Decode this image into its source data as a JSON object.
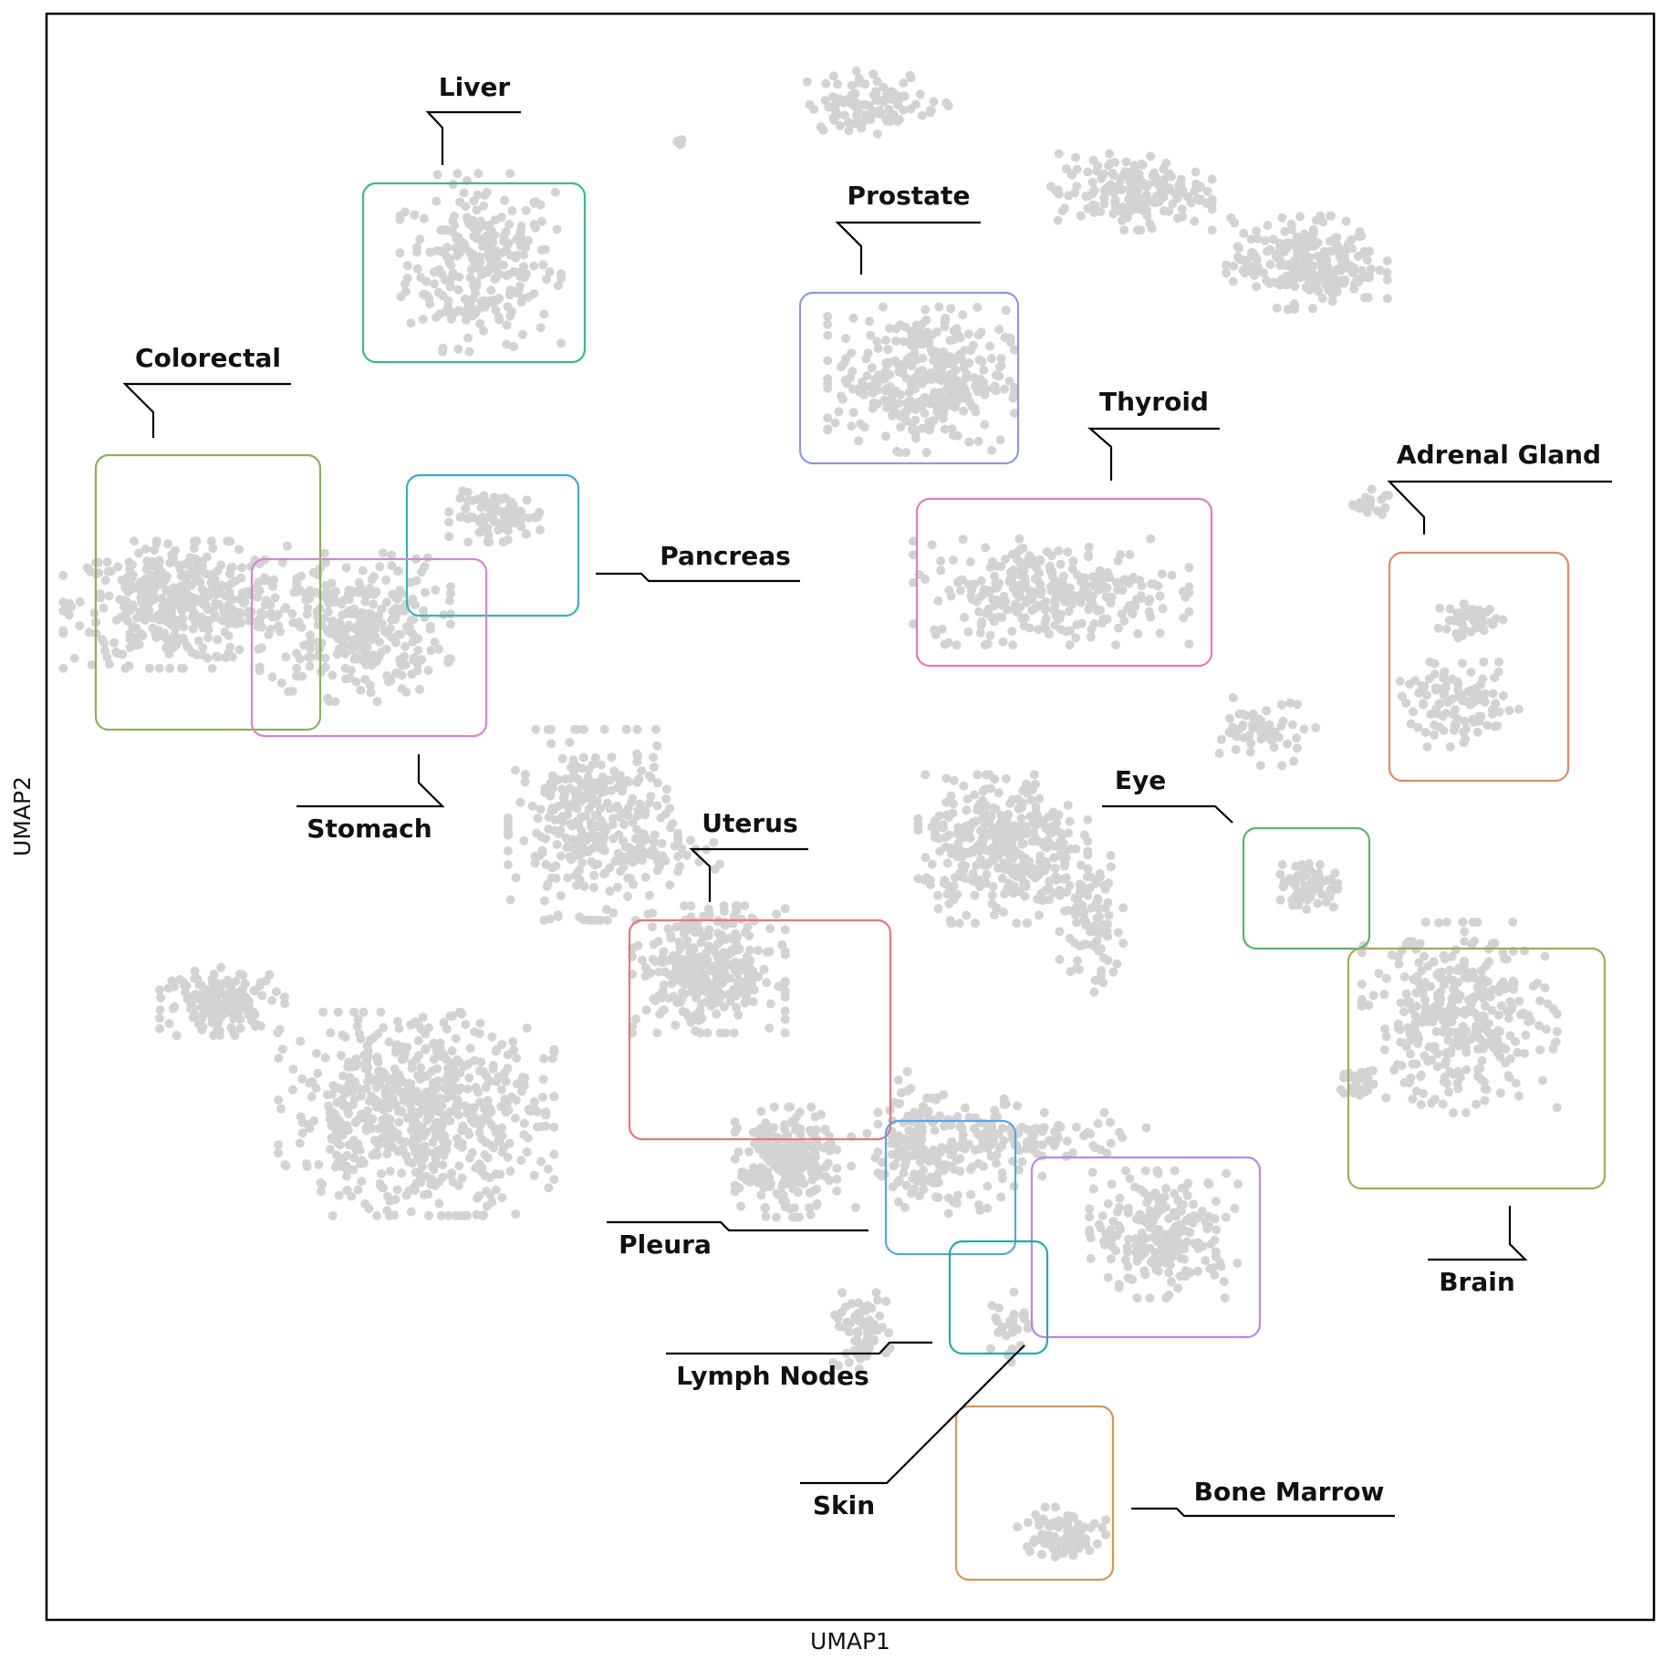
{
  "chart_data": {
    "type": "scatter",
    "title": "",
    "xlabel": "UMAP1",
    "ylabel": "UMAP2",
    "xlim": [
      0,
      100
    ],
    "ylim": [
      0,
      100
    ],
    "grid": false,
    "legend": "none",
    "point_color": "#d3d3d3",
    "note": "Points are UMAP embedding; rendered as dense clusters (approximate cluster centers and spreads in data units).",
    "clusters": [
      {
        "cx": 27,
        "cy": 84.5,
        "sx": 3.8,
        "sy": 4.2,
        "n": 260
      },
      {
        "cx": 8.3,
        "cy": 63.2,
        "sx": 5.5,
        "sy": 3.0,
        "n": 420
      },
      {
        "cx": 19.2,
        "cy": 61.8,
        "sx": 4.5,
        "sy": 3.5,
        "n": 300
      },
      {
        "cx": 28.2,
        "cy": 68.7,
        "sx": 2.4,
        "sy": 1.2,
        "n": 90
      },
      {
        "cx": 34.0,
        "cy": 49.5,
        "sx": 4.0,
        "sy": 4.5,
        "n": 320
      },
      {
        "cx": 54.4,
        "cy": 77.3,
        "sx": 4.4,
        "sy": 3.5,
        "n": 330
      },
      {
        "cx": 62.5,
        "cy": 64.0,
        "sx": 6.5,
        "sy": 2.5,
        "n": 300
      },
      {
        "cx": 67.5,
        "cy": 88.9,
        "sx": 3.8,
        "sy": 1.8,
        "n": 180
      },
      {
        "cx": 78.4,
        "cy": 84.5,
        "sx": 3.8,
        "sy": 2.2,
        "n": 240
      },
      {
        "cx": 51.5,
        "cy": 94.5,
        "sx": 3.5,
        "sy": 1.5,
        "n": 100
      },
      {
        "cx": 59.5,
        "cy": 48.0,
        "sx": 4.0,
        "sy": 3.5,
        "n": 360
      },
      {
        "cx": 65.0,
        "cy": 43.5,
        "sx": 1.5,
        "sy": 3.5,
        "n": 90
      },
      {
        "cx": 41.2,
        "cy": 40.5,
        "sx": 3.6,
        "sy": 3.0,
        "n": 340
      },
      {
        "cx": 46.0,
        "cy": 28.5,
        "sx": 2.4,
        "sy": 2.6,
        "n": 240
      },
      {
        "cx": 23.0,
        "cy": 31.5,
        "sx": 6.5,
        "sy": 4.8,
        "n": 650
      },
      {
        "cx": 11.0,
        "cy": 38.5,
        "sx": 3.0,
        "sy": 1.6,
        "n": 160
      },
      {
        "cx": 69.5,
        "cy": 24.0,
        "sx": 3.5,
        "sy": 3.0,
        "n": 230
      },
      {
        "cx": 56.0,
        "cy": 29.0,
        "sx": 4.5,
        "sy": 2.8,
        "n": 140
      },
      {
        "cx": 87.9,
        "cy": 37.5,
        "sx": 4.6,
        "sy": 4.5,
        "n": 350
      },
      {
        "cx": 87.9,
        "cy": 57.0,
        "sx": 2.8,
        "sy": 2.0,
        "n": 110
      },
      {
        "cx": 88.7,
        "cy": 62.2,
        "sx": 1.8,
        "sy": 0.8,
        "n": 50
      },
      {
        "cx": 78.6,
        "cy": 45.5,
        "sx": 1.4,
        "sy": 1.2,
        "n": 40
      },
      {
        "cx": 50.5,
        "cy": 18.0,
        "sx": 1.5,
        "sy": 1.8,
        "n": 70
      },
      {
        "cx": 54.1,
        "cy": 30.5,
        "sx": 1.8,
        "sy": 3.5,
        "n": 60
      },
      {
        "cx": 59.8,
        "cy": 18.5,
        "sx": 1.0,
        "sy": 2.0,
        "n": 30
      },
      {
        "cx": 63.0,
        "cy": 5.3,
        "sx": 2.2,
        "sy": 1.3,
        "n": 90
      },
      {
        "cx": 81.5,
        "cy": 33.5,
        "sx": 0.9,
        "sy": 0.8,
        "n": 30
      },
      {
        "cx": 76.0,
        "cy": 55.3,
        "sx": 2.3,
        "sy": 1.6,
        "n": 60
      },
      {
        "cx": 78.6,
        "cy": 45.7,
        "sx": 1.3,
        "sy": 1.0,
        "n": 30
      },
      {
        "cx": 82.3,
        "cy": 69.6,
        "sx": 0.9,
        "sy": 0.6,
        "n": 25
      },
      {
        "cx": 37.5,
        "cy": 47.6,
        "sx": 3.5,
        "sy": 0.8,
        "n": 40
      },
      {
        "cx": 39.5,
        "cy": 92.1,
        "sx": 0.4,
        "sy": 0.3,
        "n": 6
      },
      {
        "cx": 60.5,
        "cy": 30.0,
        "sx": 6.0,
        "sy": 1.2,
        "n": 80
      }
    ],
    "annotations": [
      {
        "label": "Liver",
        "color": "#3cb98c"
      },
      {
        "label": "Colorectal",
        "color": "#8cb05a"
      },
      {
        "label": "Pancreas",
        "color": "#3aaec6"
      },
      {
        "label": "Stomach",
        "color": "#d785d0"
      },
      {
        "label": "Prostate",
        "color": "#8f9ad8"
      },
      {
        "label": "Thyroid",
        "color": "#e07fb8"
      },
      {
        "label": "Adrenal Gland",
        "color": "#e08a6e"
      },
      {
        "label": "Eye",
        "color": "#5cb36e"
      },
      {
        "label": "Uterus",
        "color": "#e7777e"
      },
      {
        "label": "Brain",
        "color": "#a8a85a"
      },
      {
        "label": "Pleura",
        "color": "#5aa6db"
      },
      {
        "label": "Skin",
        "color": "#b58cde"
      },
      {
        "label": "Lymph Nodes",
        "color": "#21b0a2"
      },
      {
        "label": "Bone Marrow",
        "color": "#cc9a55"
      }
    ]
  }
}
